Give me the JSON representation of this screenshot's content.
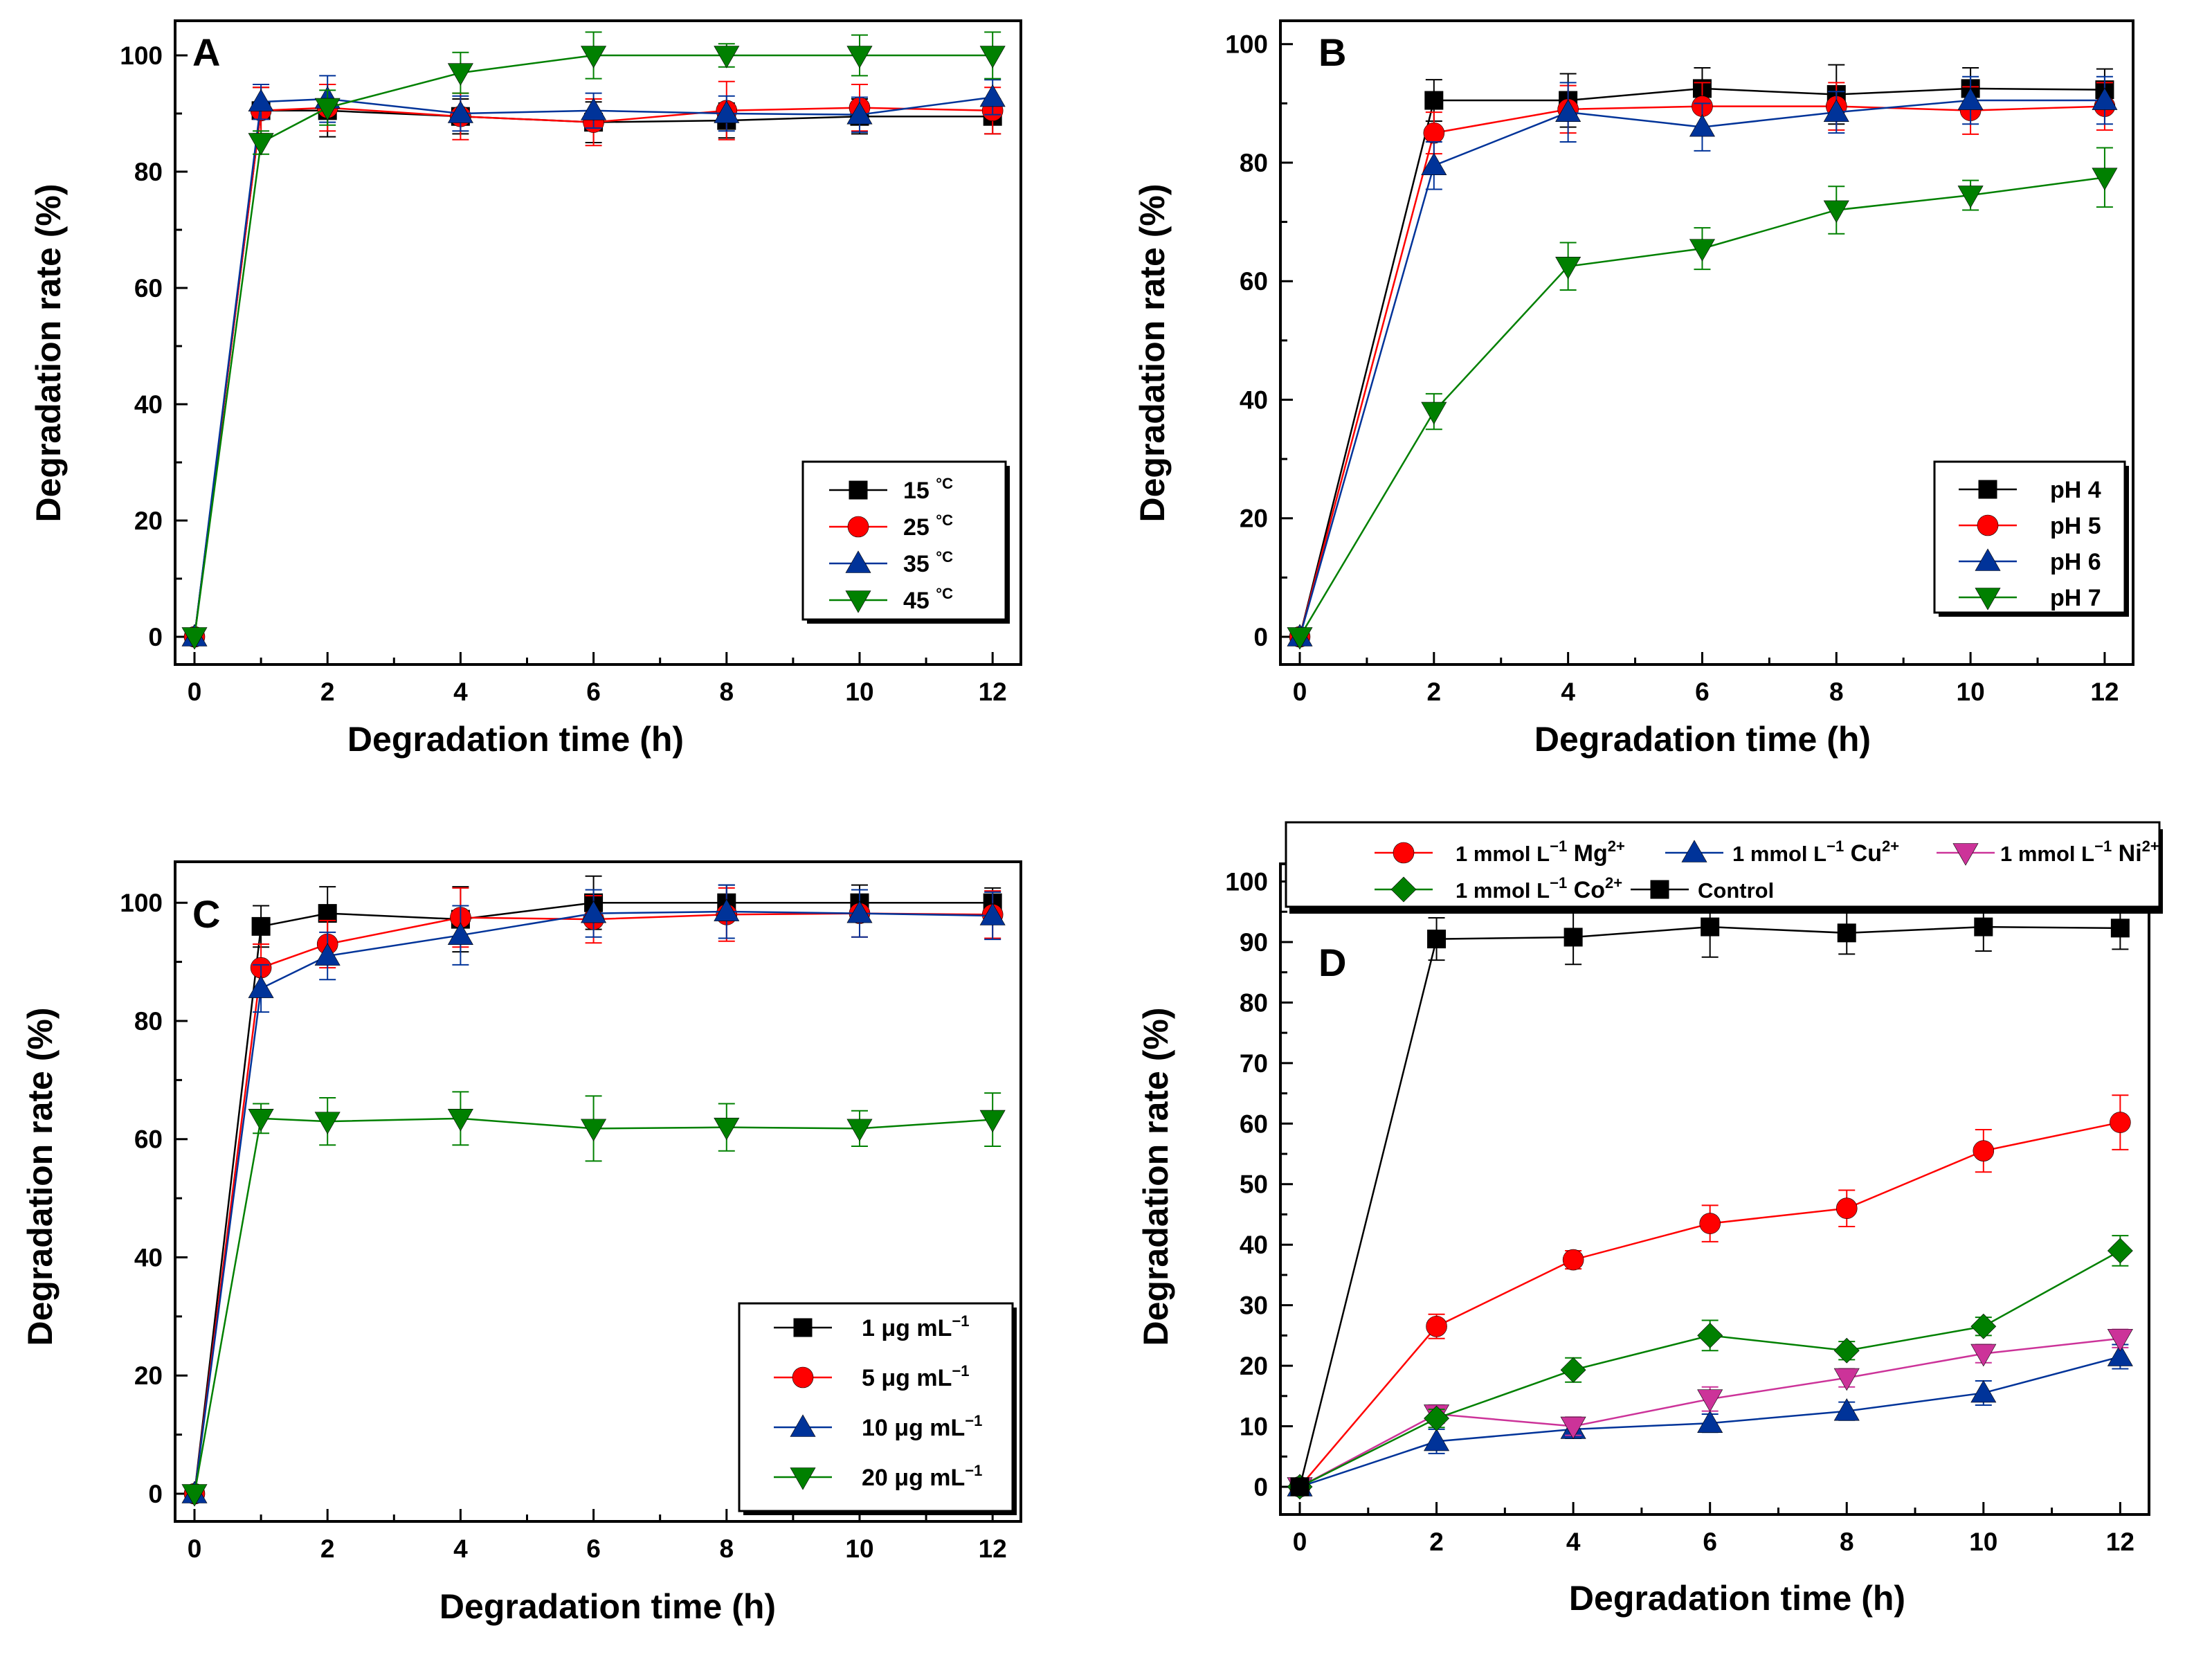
{
  "figure": {
    "panels": [
      {
        "id": "A",
        "label": "A"
      },
      {
        "id": "B",
        "label": "B"
      },
      {
        "id": "C",
        "label": "C"
      },
      {
        "id": "D",
        "label": "D"
      }
    ]
  },
  "chart_data": [
    {
      "panel": "A",
      "type": "line",
      "xlabel": "Degradation time (h)",
      "ylabel": "Degradation rate (%)",
      "xlim": [
        0,
        12.3
      ],
      "ylim": [
        0,
        105
      ],
      "xticks": [
        0,
        2,
        4,
        6,
        8,
        10,
        12
      ],
      "yticks": [
        0,
        20,
        40,
        60,
        80,
        100
      ],
      "legend_position": "bottom-right",
      "x": [
        0,
        1,
        2,
        4,
        6,
        8,
        10,
        12
      ],
      "series": [
        {
          "name": "15 °C",
          "name_parts": [
            "15 ",
            "°C",
            ""
          ],
          "color": "#000000",
          "marker": "square",
          "values": [
            0,
            90.5,
            90.5,
            89.5,
            88.5,
            88.8,
            89.5,
            89.5
          ],
          "errors": [
            0,
            4,
            4.5,
            3,
            3.5,
            3,
            3,
            3
          ]
        },
        {
          "name": "25 °C",
          "name_parts": [
            "25 ",
            "°C",
            ""
          ],
          "color": "#ff0000",
          "marker": "circle",
          "values": [
            0,
            90.5,
            91,
            89.5,
            88.5,
            90.5,
            91,
            90.5
          ],
          "errors": [
            0,
            4,
            4,
            4,
            4,
            5,
            4,
            4
          ]
        },
        {
          "name": "35 °C",
          "name_parts": [
            "35 ",
            "°C",
            ""
          ],
          "color": "#003399",
          "marker": "triangle-up",
          "values": [
            0,
            92,
            92.5,
            90,
            90.5,
            90,
            89.8,
            92.8
          ],
          "errors": [
            0,
            3,
            4,
            3,
            3,
            3,
            3,
            3
          ]
        },
        {
          "name": "45 °C",
          "name_parts": [
            "45 ",
            "°C",
            ""
          ],
          "color": "#008000",
          "marker": "triangle-down",
          "values": [
            0,
            85,
            91,
            97,
            100,
            100,
            100,
            100
          ],
          "errors": [
            0,
            2,
            3,
            3.5,
            4,
            2,
            3.5,
            4
          ]
        }
      ]
    },
    {
      "panel": "B",
      "type": "line",
      "xlabel": "Degradation time (h)",
      "ylabel": "Degradation rate (%)",
      "xlim": [
        0,
        12.3
      ],
      "ylim": [
        0,
        103
      ],
      "xticks": [
        0,
        2,
        4,
        6,
        8,
        10,
        12
      ],
      "yticks": [
        0,
        20,
        40,
        60,
        80,
        100
      ],
      "legend_position": "bottom-right",
      "x": [
        0,
        2,
        4,
        6,
        8,
        10,
        12
      ],
      "series": [
        {
          "name": "pH 4",
          "name_parts": [
            "pH 4",
            "",
            ""
          ],
          "color": "#000000",
          "marker": "square",
          "values": [
            0,
            90.5,
            90.5,
            92.5,
            91.5,
            92.5,
            92.3
          ],
          "errors": [
            0,
            3.5,
            4.5,
            3.5,
            5,
            3.5,
            3.5
          ]
        },
        {
          "name": "pH 5",
          "name_parts": [
            "pH 5",
            "",
            ""
          ],
          "color": "#ff0000",
          "marker": "circle",
          "values": [
            0,
            85,
            89,
            89.5,
            89.5,
            88.8,
            89.5
          ],
          "errors": [
            0,
            3.5,
            4,
            4,
            4,
            4,
            4
          ]
        },
        {
          "name": "pH 6",
          "name_parts": [
            "pH 6",
            "",
            ""
          ],
          "color": "#003399",
          "marker": "triangle-up",
          "values": [
            0,
            79.5,
            88.5,
            86,
            88.5,
            90.5,
            90.5
          ],
          "errors": [
            0,
            4,
            5,
            4,
            3.5,
            4,
            4
          ]
        },
        {
          "name": "pH 7",
          "name_parts": [
            "pH 7",
            "",
            ""
          ],
          "color": "#008000",
          "marker": "triangle-down",
          "values": [
            0,
            38,
            62.5,
            65.5,
            72,
            74.5,
            77.5
          ],
          "errors": [
            0,
            3,
            4,
            3.5,
            4,
            2.5,
            5
          ]
        }
      ]
    },
    {
      "panel": "C",
      "type": "line",
      "xlabel": "Degradation time (h)",
      "ylabel": "Degradation rate (%)",
      "xlim": [
        0,
        12.3
      ],
      "ylim": [
        0,
        106
      ],
      "xticks": [
        0,
        2,
        4,
        6,
        8,
        10,
        12
      ],
      "yticks": [
        0,
        20,
        40,
        60,
        80,
        100
      ],
      "legend_position": "bottom-right",
      "x": [
        0,
        1,
        2,
        4,
        6,
        8,
        10,
        12
      ],
      "series": [
        {
          "name": "1 μg mL−1",
          "name_parts": [
            "1 μg mL",
            "−1",
            ""
          ],
          "color": "#000000",
          "marker": "square",
          "values": [
            0,
            96,
            98.2,
            97.2,
            100,
            100,
            100,
            100
          ],
          "errors": [
            0,
            3.5,
            4.5,
            5.5,
            4.5,
            3,
            3,
            2.5
          ]
        },
        {
          "name": "5 μg mL−1",
          "name_parts": [
            "5 μg mL",
            "−1",
            ""
          ],
          "color": "#ff0000",
          "marker": "circle",
          "values": [
            0,
            89,
            93,
            97.5,
            97.2,
            98,
            98.2,
            98
          ],
          "errors": [
            0,
            4,
            4,
            5,
            4,
            4.5,
            4,
            4
          ]
        },
        {
          "name": "10 μg mL−1",
          "name_parts": [
            "10 μg mL",
            "−1",
            ""
          ],
          "color": "#003399",
          "marker": "triangle-up",
          "values": [
            0,
            85.5,
            91,
            94.5,
            98.2,
            98.5,
            98.2,
            97.8
          ],
          "errors": [
            0,
            4,
            4,
            5,
            4,
            4.5,
            4,
            4
          ]
        },
        {
          "name": "20 μg mL−1",
          "name_parts": [
            "20 μg mL",
            "−1",
            ""
          ],
          "color": "#008000",
          "marker": "triangle-down",
          "values": [
            0,
            63.5,
            63,
            63.5,
            61.8,
            62,
            61.8,
            63.3
          ],
          "errors": [
            0,
            2.5,
            4,
            4.5,
            5.5,
            4,
            3,
            4.5
          ]
        }
      ]
    },
    {
      "panel": "D",
      "type": "line",
      "xlabel": "Degradation time (h)",
      "ylabel": "Degradation rate (%)",
      "xlim": [
        0,
        12.3
      ],
      "ylim": [
        0,
        102
      ],
      "xticks": [
        0,
        2,
        4,
        6,
        8,
        10,
        12
      ],
      "yticks": [
        0,
        10,
        20,
        30,
        40,
        50,
        60,
        70,
        80,
        90,
        100
      ],
      "legend_position": "top (outside plot, two rows)",
      "x": [
        0,
        2,
        4,
        6,
        8,
        10,
        12
      ],
      "series": [
        {
          "name": "1 mmol L−1 Mg2+",
          "name_parts": [
            "1 mmol L",
            "−1",
            " Mg",
            "2+"
          ],
          "color": "#ff0000",
          "marker": "circle",
          "values": [
            0,
            26.5,
            37.5,
            43.5,
            46,
            55.5,
            60.2
          ],
          "errors": [
            0,
            2,
            1.5,
            3,
            3,
            3.5,
            4.5
          ]
        },
        {
          "name": "1 mmol L−1 Cu2+",
          "name_parts": [
            "1 mmol L",
            "−1",
            " Cu",
            "2+"
          ],
          "color": "#003399",
          "marker": "triangle-up",
          "values": [
            0,
            7.5,
            9.5,
            10.5,
            12.5,
            15.5,
            21.5
          ],
          "errors": [
            0,
            2,
            1.5,
            1.5,
            1.5,
            2,
            2
          ]
        },
        {
          "name": "1 mmol L−1 Ni2+",
          "name_parts": [
            "1 mmol L",
            "−1",
            " Ni",
            "2+"
          ],
          "color": "#cc3399",
          "marker": "triangle-down",
          "values": [
            0,
            12,
            10,
            14.5,
            18,
            22,
            24.5
          ],
          "errors": [
            0,
            1.5,
            1.5,
            2,
            1.5,
            1.5,
            1.5
          ]
        },
        {
          "name": "1 mmol L−1 Co2+",
          "name_parts": [
            "1 mmol L",
            "−1",
            " Co",
            "2+"
          ],
          "color": "#008000",
          "marker": "diamond",
          "values": [
            0,
            11.3,
            19.3,
            25,
            22.5,
            26.5,
            39
          ],
          "errors": [
            0,
            1.5,
            2,
            2.5,
            1.5,
            1.5,
            2.5
          ]
        },
        {
          "name": "Control",
          "name_parts": [
            "Control",
            "",
            ""
          ],
          "color": "#000000",
          "marker": "square",
          "values": [
            0,
            90.5,
            90.8,
            92.5,
            91.5,
            92.5,
            92.3
          ],
          "errors": [
            0,
            3.5,
            4.5,
            5,
            3.5,
            4,
            3.5
          ]
        }
      ]
    }
  ]
}
